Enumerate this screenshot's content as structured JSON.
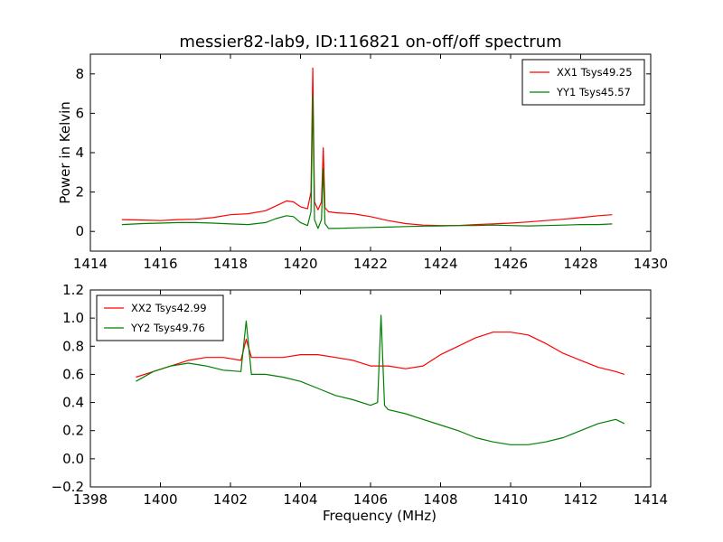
{
  "figure": {
    "title": "messier82-lab9, ID:116821 on-off/off spectrum"
  },
  "chart_data": [
    {
      "type": "line",
      "title": "messier82-lab9, ID:116821 on-off/off spectrum",
      "xlabel": "",
      "ylabel": "Power in Kelvin",
      "xlim": [
        1414,
        1430
      ],
      "ylim": [
        -1,
        9
      ],
      "xticks": [
        1414,
        1416,
        1418,
        1420,
        1422,
        1424,
        1426,
        1428,
        1430
      ],
      "xtick_labels": [
        "1414",
        "1416",
        "1418",
        "1420",
        "1422",
        "1424",
        "1426",
        "1428",
        "1430"
      ],
      "yticks": [
        0,
        2,
        4,
        6,
        8
      ],
      "ytick_labels": [
        "0",
        "2",
        "4",
        "6",
        "8"
      ],
      "grid": false,
      "legend_position": "top-right",
      "series": [
        {
          "name": "XX1 Tsys49.25",
          "color": "#ff0000",
          "x": [
            1414.9,
            1415.5,
            1416.0,
            1416.5,
            1417.0,
            1417.5,
            1418.0,
            1418.5,
            1419.0,
            1419.3,
            1419.6,
            1419.8,
            1420.0,
            1420.2,
            1420.3,
            1420.35,
            1420.4,
            1420.5,
            1420.6,
            1420.65,
            1420.7,
            1420.8,
            1421.0,
            1421.5,
            1422.0,
            1422.5,
            1423.0,
            1423.5,
            1424.0,
            1424.5,
            1425.0,
            1425.5,
            1426.0,
            1426.5,
            1427.0,
            1427.5,
            1428.0,
            1428.5,
            1428.9
          ],
          "y": [
            0.6,
            0.58,
            0.55,
            0.6,
            0.62,
            0.7,
            0.85,
            0.9,
            1.05,
            1.3,
            1.55,
            1.5,
            1.25,
            1.15,
            2.0,
            8.3,
            1.5,
            1.1,
            1.5,
            4.25,
            1.2,
            1.0,
            0.95,
            0.9,
            0.75,
            0.55,
            0.4,
            0.32,
            0.3,
            0.3,
            0.35,
            0.38,
            0.42,
            0.48,
            0.55,
            0.62,
            0.7,
            0.8,
            0.85
          ]
        },
        {
          "name": "YY1 Tsys45.57",
          "color": "#008000",
          "x": [
            1414.9,
            1415.5,
            1416.0,
            1416.5,
            1417.0,
            1417.5,
            1418.0,
            1418.5,
            1419.0,
            1419.3,
            1419.6,
            1419.8,
            1420.0,
            1420.2,
            1420.3,
            1420.35,
            1420.4,
            1420.5,
            1420.6,
            1420.65,
            1420.7,
            1420.8,
            1421.0,
            1421.5,
            1422.0,
            1422.5,
            1423.0,
            1423.5,
            1424.0,
            1424.5,
            1425.0,
            1425.5,
            1426.0,
            1426.5,
            1427.0,
            1427.5,
            1428.0,
            1428.5,
            1428.9
          ],
          "y": [
            0.35,
            0.4,
            0.42,
            0.45,
            0.45,
            0.42,
            0.38,
            0.35,
            0.45,
            0.65,
            0.8,
            0.75,
            0.45,
            0.3,
            1.0,
            6.9,
            0.6,
            0.15,
            0.6,
            3.2,
            0.4,
            0.15,
            0.15,
            0.18,
            0.2,
            0.22,
            0.25,
            0.27,
            0.28,
            0.3,
            0.3,
            0.32,
            0.3,
            0.28,
            0.3,
            0.32,
            0.35,
            0.35,
            0.38
          ]
        }
      ]
    },
    {
      "type": "line",
      "title": "",
      "xlabel": "Frequency (MHz)",
      "ylabel": "",
      "xlim": [
        1398,
        1414
      ],
      "ylim": [
        -0.2,
        1.2
      ],
      "xticks": [
        1398,
        1400,
        1402,
        1404,
        1406,
        1408,
        1410,
        1412,
        1414
      ],
      "xtick_labels": [
        "1398",
        "1400",
        "1402",
        "1404",
        "1406",
        "1408",
        "1410",
        "1412",
        "1414"
      ],
      "yticks": [
        -0.2,
        0.0,
        0.2,
        0.4,
        0.6,
        0.8,
        1.0,
        1.2
      ],
      "ytick_labels": [
        "−0.2",
        "0.0",
        "0.2",
        "0.4",
        "0.6",
        "0.8",
        "1.0",
        "1.2"
      ],
      "grid": false,
      "legend_position": "top-left",
      "series": [
        {
          "name": "XX2 Tsys42.99",
          "color": "#ff0000",
          "x": [
            1399.3,
            1399.8,
            1400.3,
            1400.8,
            1401.3,
            1401.8,
            1402.3,
            1402.45,
            1402.6,
            1403.0,
            1403.5,
            1404.0,
            1404.5,
            1405.0,
            1405.5,
            1406.0,
            1406.5,
            1407.0,
            1407.5,
            1408.0,
            1408.5,
            1409.0,
            1409.5,
            1410.0,
            1410.5,
            1411.0,
            1411.5,
            1412.0,
            1412.5,
            1413.0,
            1413.25
          ],
          "y": [
            0.58,
            0.62,
            0.66,
            0.7,
            0.72,
            0.72,
            0.7,
            0.85,
            0.72,
            0.72,
            0.72,
            0.74,
            0.74,
            0.72,
            0.7,
            0.66,
            0.66,
            0.64,
            0.66,
            0.74,
            0.8,
            0.86,
            0.9,
            0.9,
            0.88,
            0.82,
            0.75,
            0.7,
            0.65,
            0.62,
            0.6
          ]
        },
        {
          "name": "YY2 Tsys49.76",
          "color": "#008000",
          "x": [
            1399.3,
            1399.8,
            1400.3,
            1400.8,
            1401.3,
            1401.8,
            1402.3,
            1402.45,
            1402.6,
            1403.0,
            1403.5,
            1404.0,
            1404.5,
            1405.0,
            1405.5,
            1406.0,
            1406.2,
            1406.3,
            1406.4,
            1406.5,
            1407.0,
            1407.5,
            1408.0,
            1408.5,
            1409.0,
            1409.5,
            1410.0,
            1410.5,
            1411.0,
            1411.5,
            1412.0,
            1412.5,
            1413.0,
            1413.25
          ],
          "y": [
            0.55,
            0.62,
            0.66,
            0.68,
            0.66,
            0.63,
            0.62,
            0.98,
            0.6,
            0.6,
            0.58,
            0.55,
            0.5,
            0.45,
            0.42,
            0.38,
            0.4,
            1.02,
            0.38,
            0.35,
            0.32,
            0.28,
            0.24,
            0.2,
            0.15,
            0.12,
            0.1,
            0.1,
            0.12,
            0.15,
            0.2,
            0.25,
            0.28,
            0.25
          ]
        }
      ]
    }
  ]
}
